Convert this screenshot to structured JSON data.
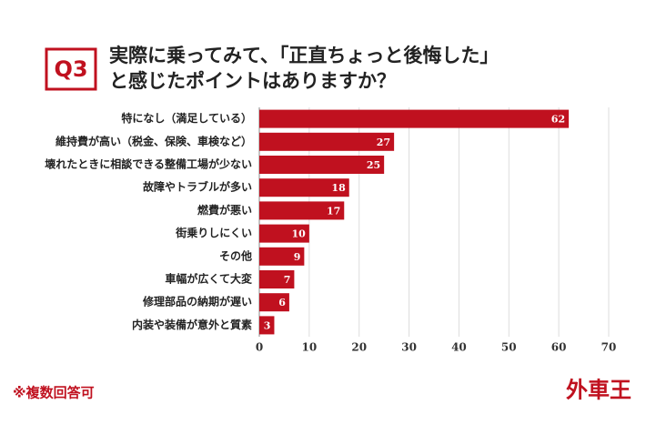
{
  "chart_data": {
    "type": "hbar",
    "badge": "Q3",
    "title": [
      "実際に乗ってみて、「正直ちょっと後悔した」",
      "と感じたポイントはありますか？"
    ],
    "categories": [
      "特になし（満足している）",
      "維持費が高い（税金、保険、車検など）",
      "壊れたときに相談できる整備工場が少ない",
      "故障やトラブルが多い",
      "燃費が悪い",
      "街乗りしにくい",
      "その他",
      "車幅が広くて大変",
      "修理部品の納期が遅い",
      "内装や装備が意外と質素"
    ],
    "values": [
      62,
      27,
      25,
      18,
      17,
      10,
      9,
      7,
      6,
      3
    ],
    "color": "#c0111f",
    "xlim": [
      0,
      70
    ],
    "xticks": [
      0,
      10,
      20,
      30,
      40,
      50,
      60,
      70
    ],
    "grid": true,
    "note": "※複数回答可",
    "brand": "外車王"
  }
}
